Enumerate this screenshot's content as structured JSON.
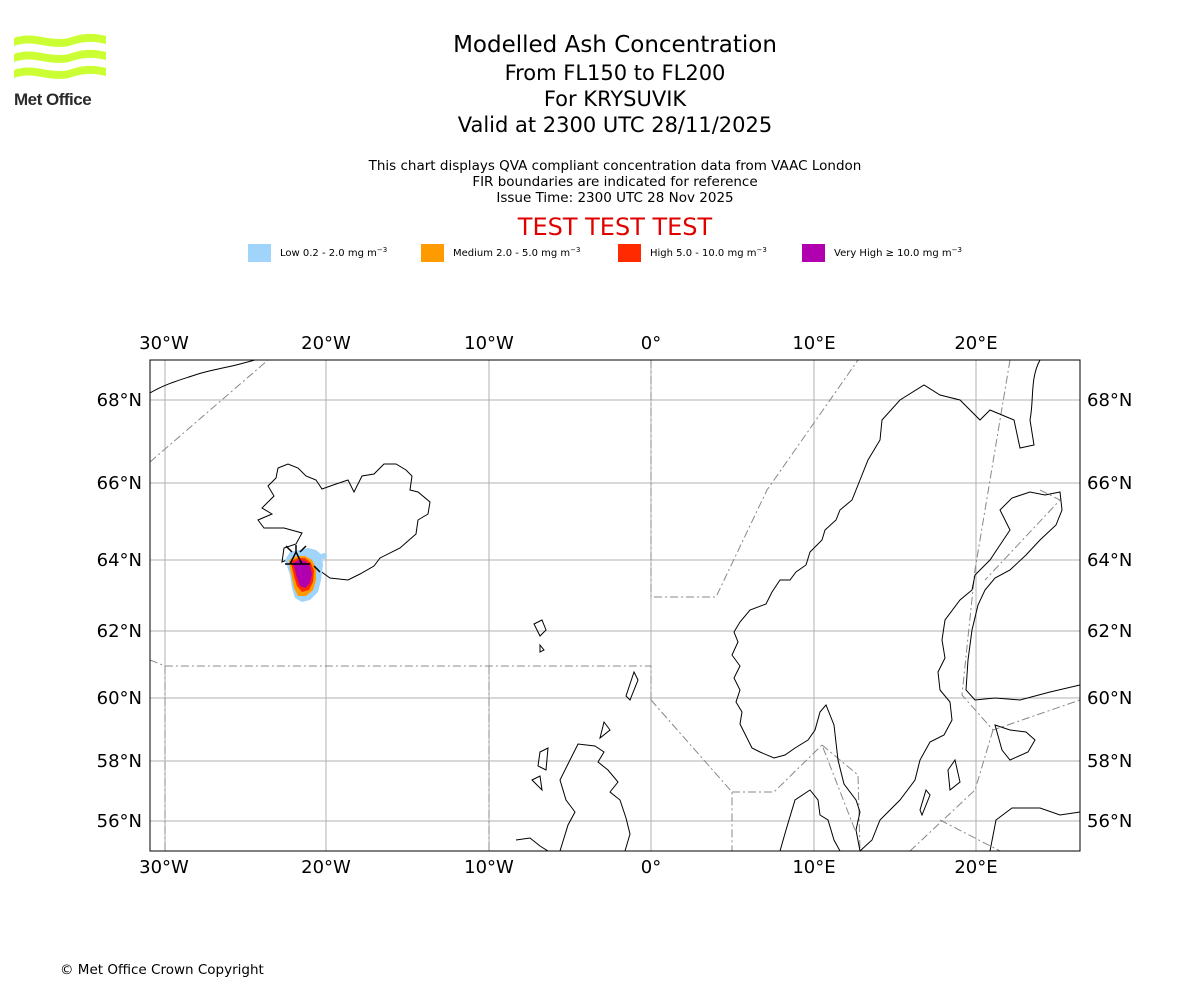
{
  "logo": {
    "text": "Met Office",
    "color": "#ccff33"
  },
  "header": {
    "title": "Modelled Ash Concentration",
    "levels": "From FL150 to FL200",
    "volcano": "For KRYSUVIK",
    "valid": "Valid at 2300 UTC 28/11/2025"
  },
  "info": {
    "line1": "This chart displays QVA compliant concentration data from VAAC London",
    "line2": "FIR boundaries are indicated for reference",
    "line3": "Issue Time: 2300 UTC 28 Nov 2025"
  },
  "banner": {
    "text": "TEST TEST TEST",
    "color": "#e00000"
  },
  "legend": [
    {
      "label": "Low 0.2 - 2.0 mg m",
      "color": "#a0d4fa"
    },
    {
      "label": "Medium 2.0 - 5.0 mg m",
      "color": "#ff9a00"
    },
    {
      "label": "High 5.0 - 10.0 mg m",
      "color": "#ff2a00"
    },
    {
      "label": "Very High ≥ 10.0 mg m",
      "color": "#b000b0"
    }
  ],
  "legend_unit_exponent": "−3",
  "map": {
    "lon_labels": [
      "30°W",
      "20°W",
      "10°W",
      "0°",
      "10°E",
      "20°E"
    ],
    "lat_labels": [
      "68°N",
      "66°N",
      "64°N",
      "62°N",
      "60°N",
      "58°N",
      "56°N"
    ],
    "extent": {
      "lon": [
        -30.9,
        26.3
      ],
      "lat": [
        55.0,
        69.0
      ]
    },
    "gridlines": true
  },
  "footer": {
    "copyright": "© Met Office Crown Copyright"
  }
}
